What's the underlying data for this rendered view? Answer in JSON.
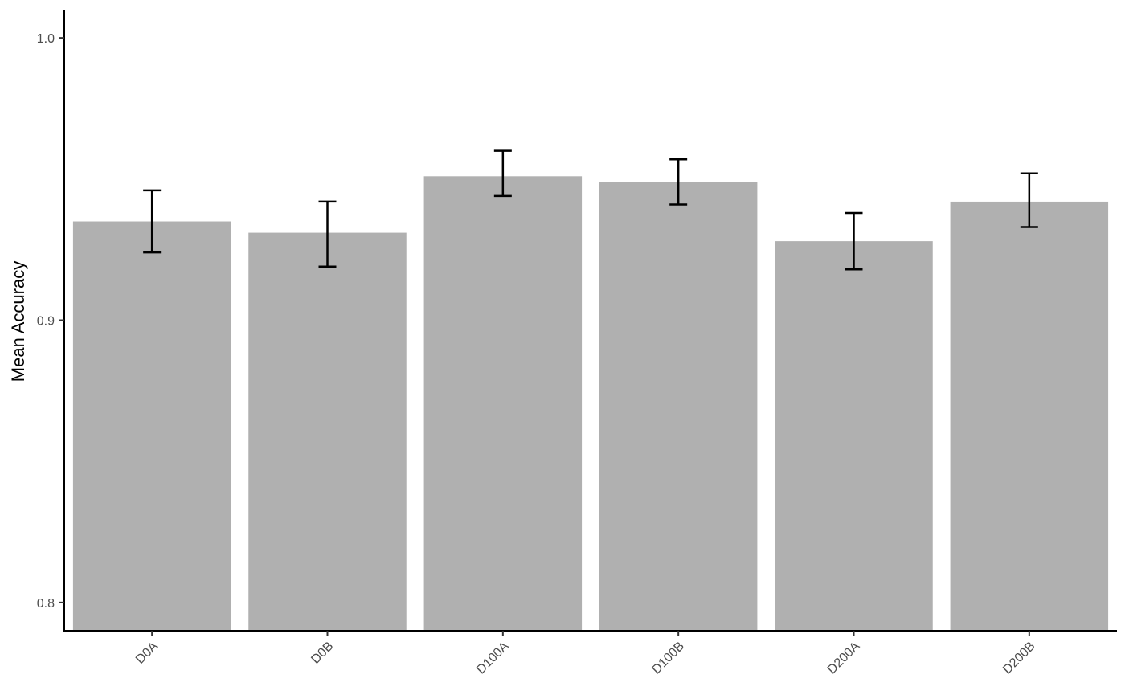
{
  "chart_data": {
    "type": "bar",
    "categories": [
      "D0A",
      "D0B",
      "D100A",
      "D100B",
      "D200A",
      "D200B"
    ],
    "values": [
      0.935,
      0.931,
      0.951,
      0.949,
      0.928,
      0.942
    ],
    "error_low": [
      0.924,
      0.919,
      0.944,
      0.941,
      0.918,
      0.933
    ],
    "error_high": [
      0.946,
      0.942,
      0.96,
      0.957,
      0.938,
      0.952
    ],
    "title": "",
    "xlabel": "",
    "ylabel": "Mean Accuracy",
    "ylim": [
      0.79,
      1.01
    ],
    "yticks": [
      0.8,
      0.9,
      1.0
    ],
    "ytick_labels": [
      "0.8",
      "0.9",
      "1.0"
    ],
    "bar_color": "#b0b0b0",
    "grid": false,
    "legend": "none"
  }
}
